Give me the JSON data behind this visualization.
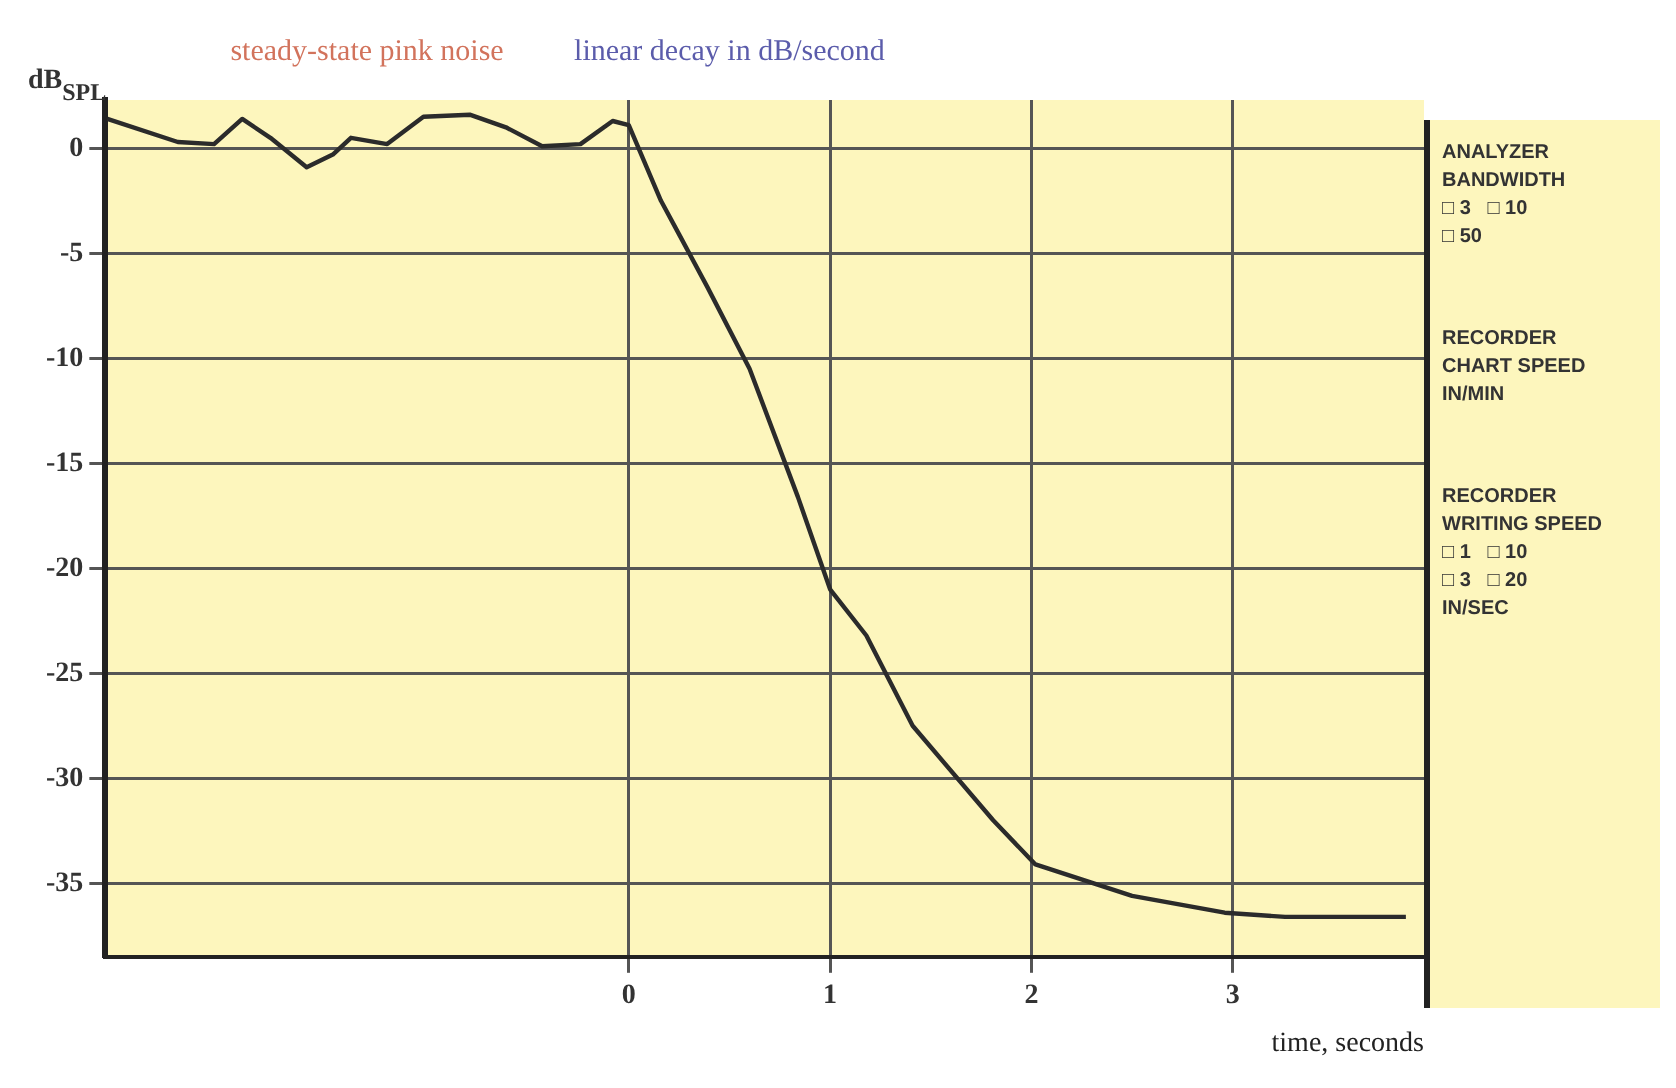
{
  "chart_data": {
    "type": "line",
    "xlabel": "time, seconds",
    "ylabel": "dB$_{SPL}$",
    "series": [
      {
        "color": "#2b2b2b",
        "x": [
          -2.59,
          -2.24,
          -2.06,
          -1.92,
          -1.78,
          -1.6,
          -1.47,
          -1.38,
          -1.2,
          -1.02,
          -0.79,
          -0.61,
          -0.43,
          -0.24,
          -0.08,
          0,
          0.16,
          0.25,
          0.39,
          0.6,
          0.84,
          1.0,
          1.18,
          1.41,
          1.81,
          2.02,
          2.5,
          2.96,
          3.26,
          3.86
        ],
        "values": [
          1.4,
          0.3,
          0.2,
          1.4,
          0.5,
          -0.9,
          -0.3,
          0.5,
          0.2,
          1.5,
          1.6,
          1.0,
          0.1,
          0.2,
          1.3,
          1.1,
          -2.5,
          -4.1,
          -6.6,
          -10.5,
          -16.6,
          -21,
          -23.2,
          -27.5,
          -32,
          -34.1,
          -35.6,
          -36.4,
          -36.6,
          -36.6
        ]
      }
    ],
    "xlim": [
      -2.6,
      3.95
    ],
    "xticks": [
      0,
      1,
      2,
      3
    ],
    "ylim": [
      -38.5,
      2.3
    ],
    "yticks": [
      0,
      -5,
      -10,
      -15,
      -20,
      -25,
      -30,
      -35
    ],
    "grid": true,
    "marker": "none",
    "line_style": "solid",
    "annotations": [
      "steady-state pink noise",
      "linear decay in dB/second",
      "ANALYZER",
      "BANDWIDTH",
      "□ 3   □ 10",
      "□ 50",
      "RECORDER",
      "CHART SPEED",
      "IN/MIN",
      "RECORDER",
      "WRITING SPEED",
      "□ 1   □ 10",
      "□ 3   □ 20",
      "IN/SEC"
    ]
  }
}
